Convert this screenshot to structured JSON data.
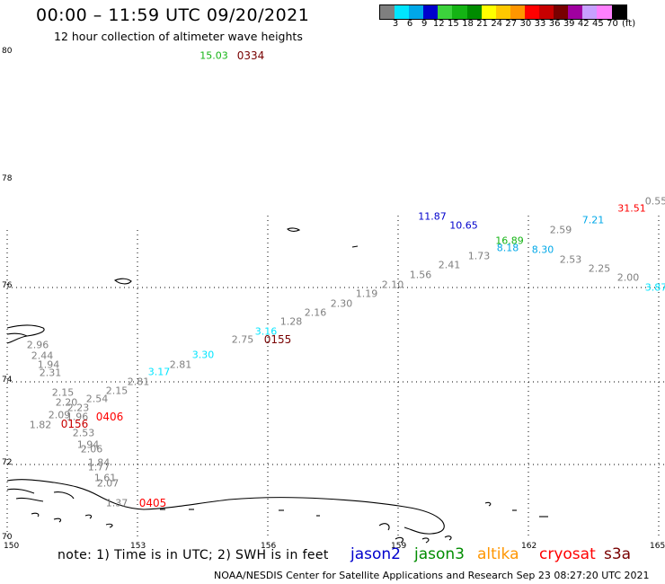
{
  "header": {
    "title": "00:00 – 11:59 UTC 09/20/2021",
    "subtitle": "12 hour collection of altimeter wave heights"
  },
  "colorbar": {
    "colors": [
      "#7f7f7f",
      "#00e5ff",
      "#00a8e8",
      "#0000cc",
      "#3cd23c",
      "#14b414",
      "#008c00",
      "#ffff00",
      "#ffc800",
      "#ff9600",
      "#ff0000",
      "#c80000",
      "#780000",
      "#a000a0",
      "#c8a0ff",
      "#ff80ff",
      "#000000"
    ],
    "labels": [
      "3",
      "6",
      "9",
      "12",
      "15",
      "18",
      "21",
      "24",
      "27",
      "30",
      "33",
      "36",
      "39",
      "42",
      "45",
      "70",
      "(ft)"
    ]
  },
  "axes": {
    "x_ticks": [
      "150",
      "153",
      "156",
      "159",
      "162",
      "165"
    ],
    "y_ticks": [
      "80",
      "78",
      "76",
      "74",
      "72",
      "70"
    ]
  },
  "chart_data": {
    "type": "scatter",
    "xlabel": "",
    "ylabel": "",
    "points": [
      {
        "text": "15.03",
        "color": "#14b414"
      },
      {
        "text": "0334",
        "color": "#780000"
      },
      {
        "text": "0.55",
        "color": "#7f7f7f"
      },
      {
        "text": "31.51",
        "color": "#ff0000"
      },
      {
        "text": "11.87",
        "color": "#0000cc"
      },
      {
        "text": "10.65",
        "color": "#0000cc"
      },
      {
        "text": "7.21",
        "color": "#00a8e8"
      },
      {
        "text": "2.59",
        "color": "#7f7f7f"
      },
      {
        "text": "16.89",
        "color": "#14b414"
      },
      {
        "text": "8.18",
        "color": "#00a8e8"
      },
      {
        "text": "8.30",
        "color": "#00a8e8"
      },
      {
        "text": "1.73",
        "color": "#7f7f7f"
      },
      {
        "text": "2.53",
        "color": "#7f7f7f"
      },
      {
        "text": "2.41",
        "color": "#7f7f7f"
      },
      {
        "text": "2.25",
        "color": "#7f7f7f"
      },
      {
        "text": "1.56",
        "color": "#7f7f7f"
      },
      {
        "text": "2.00",
        "color": "#7f7f7f"
      },
      {
        "text": "2.10",
        "color": "#7f7f7f"
      },
      {
        "text": "3.87",
        "color": "#00e5ff"
      },
      {
        "text": "1.19",
        "color": "#7f7f7f"
      },
      {
        "text": "2.30",
        "color": "#7f7f7f"
      },
      {
        "text": "2.16",
        "color": "#7f7f7f"
      },
      {
        "text": "1.28",
        "color": "#7f7f7f"
      },
      {
        "text": "3.16",
        "color": "#00e5ff"
      },
      {
        "text": "2.75",
        "color": "#7f7f7f"
      },
      {
        "text": "0155",
        "color": "#780000"
      },
      {
        "text": "3.30",
        "color": "#00e5ff"
      },
      {
        "text": "2.81",
        "color": "#7f7f7f"
      },
      {
        "text": "3.17",
        "color": "#00e5ff"
      },
      {
        "text": "2.81",
        "color": "#7f7f7f"
      },
      {
        "text": "2.96",
        "color": "#7f7f7f"
      },
      {
        "text": "2.44",
        "color": "#7f7f7f"
      },
      {
        "text": "1.94",
        "color": "#7f7f7f"
      },
      {
        "text": "2.31",
        "color": "#7f7f7f"
      },
      {
        "text": "2.15",
        "color": "#7f7f7f"
      },
      {
        "text": "2.15",
        "color": "#7f7f7f"
      },
      {
        "text": "2.20",
        "color": "#7f7f7f"
      },
      {
        "text": "2.54",
        "color": "#7f7f7f"
      },
      {
        "text": "2.23",
        "color": "#7f7f7f"
      },
      {
        "text": "2.09",
        "color": "#7f7f7f"
      },
      {
        "text": "1.96",
        "color": "#7f7f7f"
      },
      {
        "text": "0406",
        "color": "#ff0000"
      },
      {
        "text": "1.82",
        "color": "#7f7f7f"
      },
      {
        "text": "0156",
        "color": "#c80000"
      },
      {
        "text": "2.53",
        "color": "#7f7f7f"
      },
      {
        "text": "1.94",
        "color": "#7f7f7f"
      },
      {
        "text": "2.06",
        "color": "#7f7f7f"
      },
      {
        "text": "1.84",
        "color": "#7f7f7f"
      },
      {
        "text": "1.77",
        "color": "#7f7f7f"
      },
      {
        "text": "1.61",
        "color": "#7f7f7f"
      },
      {
        "text": "2.07",
        "color": "#7f7f7f"
      },
      {
        "text": "1.37",
        "color": "#7f7f7f"
      },
      {
        "text": "0405",
        "color": "#ff0000"
      }
    ]
  },
  "legend": {
    "note": "note: 1) Time is in UTC; 2) SWH is in feet",
    "satellites": [
      {
        "name": "jason2",
        "color": "#0000cc"
      },
      {
        "name": "jason3",
        "color": "#008c00"
      },
      {
        "name": "altika",
        "color": "#ff9600"
      },
      {
        "name": "cryosat",
        "color": "#ff0000"
      },
      {
        "name": "s3a",
        "color": "#780000"
      }
    ]
  },
  "footer": {
    "text": "NOAA/NESDIS Center for Satellite Applications and Research   Sep 23 08:27:20 UTC 2021"
  }
}
